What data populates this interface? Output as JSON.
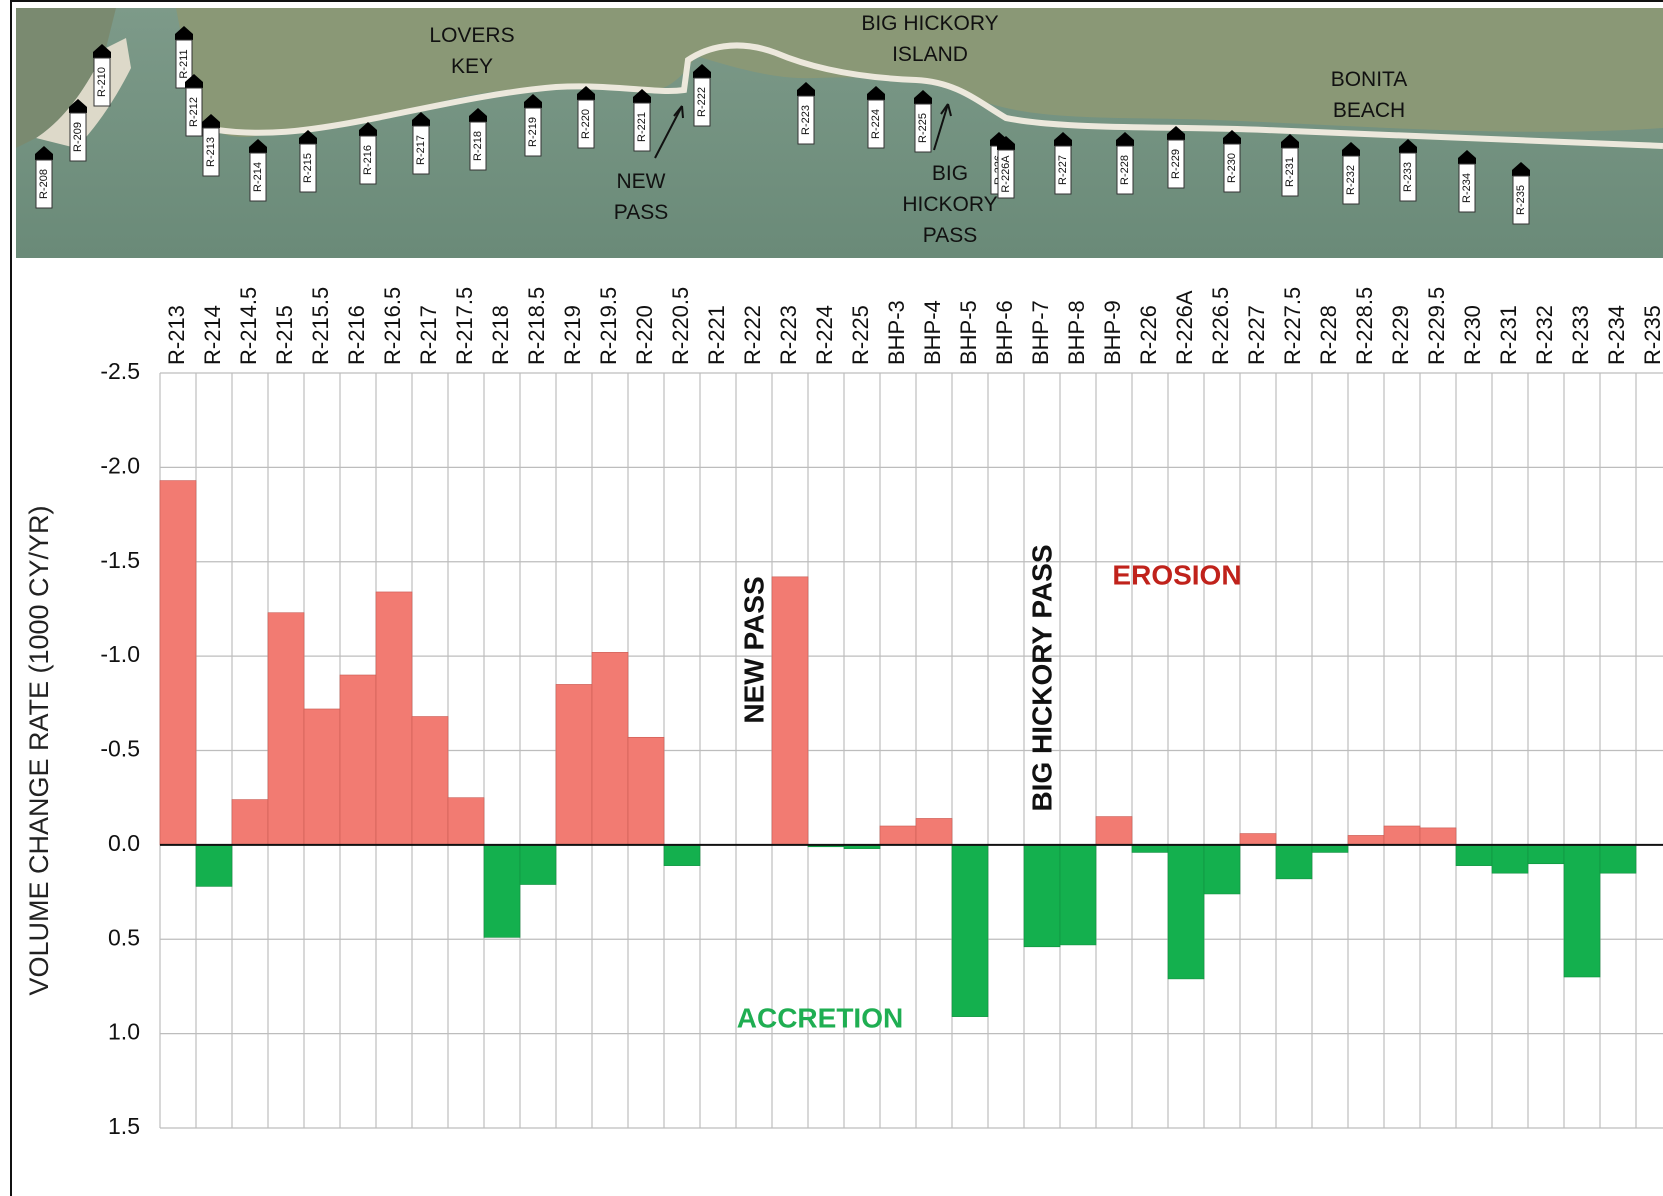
{
  "map": {
    "place_labels": [
      {
        "lines": [
          "LOVERS",
          "KEY"
        ]
      },
      {
        "lines": [
          "BIG HICKORY",
          "ISLAND"
        ]
      },
      {
        "lines": [
          "BONITA",
          "BEACH"
        ]
      },
      {
        "lines": [
          "NEW",
          "PASS"
        ]
      },
      {
        "lines": [
          "BIG",
          "HICKORY",
          "PASS"
        ]
      }
    ],
    "monuments": [
      "R-208",
      "R-209",
      "R-210",
      "R-211",
      "R-212",
      "R-213",
      "R-214",
      "R-215",
      "R-216",
      "R-217",
      "R-218",
      "R-219",
      "R-220",
      "R-221",
      "R-222",
      "R-223",
      "R-224",
      "R-225",
      "R-226",
      "R-226A",
      "R-227",
      "R-228",
      "R-229",
      "R-230",
      "R-231",
      "R-232",
      "R-233",
      "R-234",
      "R-235"
    ],
    "colors": {
      "water": "#6f8f7e",
      "land": "#8c9a7a",
      "beach": "#ece8dc"
    }
  },
  "chart_data": {
    "type": "bar",
    "ylabel": "VOLUME CHANGE RATE (1000 CY/YR)",
    "xlabel": "",
    "ylim": [
      -2.5,
      1.5
    ],
    "y_axis_inverted": true,
    "y_ticks": [
      "-2.5",
      "-2.0",
      "-1.5",
      "-1.0",
      "-0.5",
      "0.0",
      "0.5",
      "1.0",
      "1.5"
    ],
    "grid": true,
    "categories": [
      "R-213",
      "R-214",
      "R-214.5",
      "R-215",
      "R-215.5",
      "R-216",
      "R-216.5",
      "R-217",
      "R-217.5",
      "R-218",
      "R-218.5",
      "R-219",
      "R-219.5",
      "R-220",
      "R-220.5",
      "R-221",
      "R-222",
      "R-223",
      "R-224",
      "R-225",
      "BHP-3",
      "BHP-4",
      "BHP-5",
      "BHP-6",
      "BHP-7",
      "BHP-8",
      "BHP-9",
      "R-226",
      "R-226A",
      "R-226.5",
      "R-227",
      "R-227.5",
      "R-228",
      "R-228.5",
      "R-229",
      "R-229.5",
      "R-230",
      "R-231",
      "R-232",
      "R-233",
      "R-234",
      "R-235"
    ],
    "values": [
      -1.93,
      0.22,
      -0.24,
      -1.23,
      -0.72,
      -0.9,
      -1.34,
      -0.68,
      -0.25,
      0.49,
      0.21,
      -0.85,
      -1.02,
      -0.57,
      0.11,
      null,
      null,
      -1.42,
      0.01,
      0.02,
      -0.1,
      -0.14,
      0.91,
      null,
      0.54,
      0.53,
      -0.15,
      0.04,
      0.71,
      0.26,
      -0.06,
      0.18,
      0.04,
      -0.05,
      -0.1,
      -0.09,
      0.11,
      0.15,
      0.1,
      0.7,
      0.15,
      null
    ],
    "annotations": [
      {
        "text": "EROSION",
        "color": "#c0221b"
      },
      {
        "text": "ACCRETION",
        "color": "#1fae52"
      },
      {
        "text": "NEW PASS",
        "color": "#111111",
        "orientation": "vertical"
      },
      {
        "text": "BIG HICKORY PASS",
        "color": "#111111",
        "orientation": "vertical"
      }
    ],
    "colors": {
      "erosion": "#f27b72",
      "erosion_dark": "#c95a52",
      "accretion": "#14b04e",
      "grid": "#bdbdbd"
    }
  }
}
